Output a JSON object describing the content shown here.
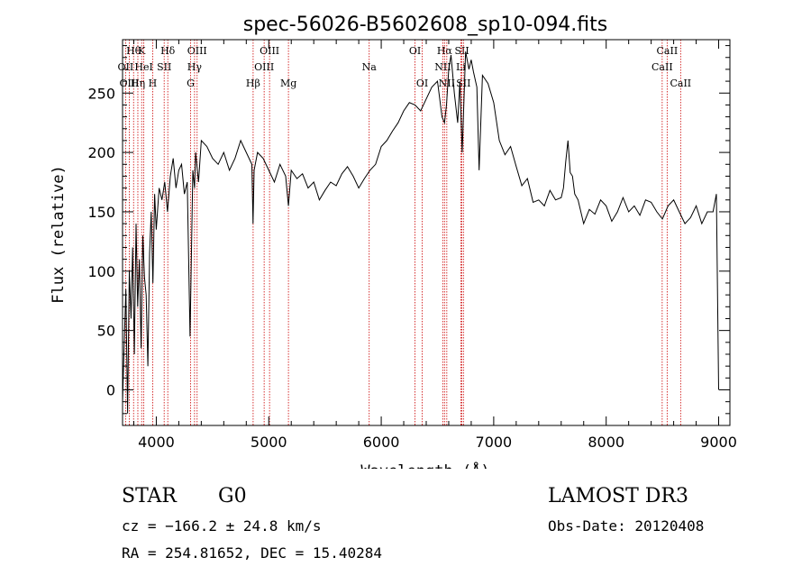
{
  "chart_data": {
    "type": "line",
    "title": "spec-56026-B5602608_sp10-094.fits",
    "xlabel": "Wavelength (Å)",
    "ylabel": "Flux (relative)",
    "xlim": [
      3700,
      9100
    ],
    "ylim": [
      -30,
      295
    ],
    "x_ticks": [
      4000,
      5000,
      6000,
      7000,
      8000,
      9000
    ],
    "y_ticks": [
      0,
      50,
      100,
      150,
      200,
      250
    ],
    "line_color": "#000000",
    "marker_color": "#cc0000",
    "series": [
      {
        "name": "flux",
        "x": [
          3700,
          3715,
          3730,
          3745,
          3760,
          3775,
          3790,
          3805,
          3820,
          3835,
          3850,
          3865,
          3880,
          3895,
          3910,
          3925,
          3940,
          3955,
          3970,
          3985,
          4000,
          4025,
          4050,
          4075,
          4100,
          4125,
          4150,
          4175,
          4200,
          4225,
          4250,
          4275,
          4300,
          4325,
          4340,
          4350,
          4375,
          4400,
          4450,
          4500,
          4550,
          4600,
          4650,
          4700,
          4750,
          4800,
          4850,
          4860,
          4870,
          4900,
          4950,
          5000,
          5050,
          5100,
          5150,
          5175,
          5200,
          5250,
          5300,
          5350,
          5400,
          5450,
          5500,
          5550,
          5600,
          5650,
          5700,
          5750,
          5800,
          5850,
          5900,
          5950,
          6000,
          6050,
          6100,
          6150,
          6200,
          6250,
          6300,
          6350,
          6400,
          6450,
          6500,
          6540,
          6563,
          6580,
          6600,
          6620,
          6650,
          6680,
          6700,
          6720,
          6750,
          6780,
          6800,
          6820,
          6850,
          6870,
          6900,
          6950,
          7000,
          7050,
          7100,
          7150,
          7200,
          7250,
          7300,
          7350,
          7400,
          7450,
          7500,
          7550,
          7600,
          7620,
          7640,
          7660,
          7680,
          7700,
          7720,
          7750,
          7800,
          7850,
          7900,
          7950,
          8000,
          8050,
          8100,
          8150,
          8200,
          8250,
          8300,
          8350,
          8400,
          8450,
          8500,
          8550,
          8600,
          8650,
          8700,
          8750,
          8800,
          8850,
          8900,
          8950,
          8980,
          9000
        ],
        "values": [
          -10,
          40,
          85,
          -20,
          100,
          60,
          120,
          30,
          140,
          70,
          110,
          35,
          130,
          95,
          80,
          20,
          115,
          150,
          90,
          165,
          135,
          170,
          160,
          175,
          150,
          180,
          195,
          170,
          185,
          190,
          165,
          175,
          45,
          185,
          170,
          200,
          175,
          210,
          205,
          195,
          190,
          200,
          185,
          195,
          210,
          200,
          190,
          140,
          185,
          200,
          195,
          185,
          175,
          190,
          180,
          155,
          185,
          178,
          182,
          170,
          175,
          160,
          168,
          175,
          172,
          182,
          188,
          180,
          170,
          178,
          185,
          190,
          205,
          210,
          218,
          225,
          235,
          242,
          240,
          235,
          245,
          255,
          260,
          230,
          225,
          240,
          270,
          282,
          250,
          225,
          260,
          200,
          285,
          270,
          278,
          268,
          255,
          185,
          265,
          258,
          242,
          210,
          198,
          205,
          188,
          172,
          178,
          158,
          160,
          155,
          168,
          160,
          162,
          170,
          192,
          210,
          183,
          180,
          165,
          160,
          140,
          152,
          148,
          160,
          155,
          142,
          150,
          162,
          150,
          155,
          147,
          160,
          158,
          150,
          144,
          155,
          160,
          150,
          140,
          145,
          155,
          140,
          150,
          150,
          165,
          0
        ]
      }
    ],
    "line_markers": [
      {
        "label": "Hθ",
        "x": 3798,
        "row": 1
      },
      {
        "label": "OII",
        "x": 3727,
        "row": 2
      },
      {
        "label": "OIII",
        "x": 3760,
        "row": 3
      },
      {
        "label": "K",
        "x": 3870,
        "row": 1
      },
      {
        "label": "HeI",
        "x": 3889,
        "row": 2
      },
      {
        "label": "Hη",
        "x": 3836,
        "row": 3
      },
      {
        "label": "H",
        "x": 3968,
        "row": 3
      },
      {
        "label": "Hδ",
        "x": 4102,
        "row": 1
      },
      {
        "label": "SII",
        "x": 4070,
        "row": 2
      },
      {
        "label": "OIII",
        "x": 4363,
        "row": 1
      },
      {
        "label": "Hγ",
        "x": 4340,
        "row": 2
      },
      {
        "label": "G",
        "x": 4305,
        "row": 3
      },
      {
        "label": "Hβ",
        "x": 4861,
        "row": 3
      },
      {
        "label": "OIII",
        "x": 5007,
        "row": 1
      },
      {
        "label": "OIII",
        "x": 4959,
        "row": 2
      },
      {
        "label": "Mg",
        "x": 5175,
        "row": 3
      },
      {
        "label": "Na",
        "x": 5893,
        "row": 2
      },
      {
        "label": "OI",
        "x": 6300,
        "row": 1
      },
      {
        "label": "OI",
        "x": 6364,
        "row": 3
      },
      {
        "label": "Hα",
        "x": 6563,
        "row": 1
      },
      {
        "label": "NII",
        "x": 6548,
        "row": 2
      },
      {
        "label": "NII",
        "x": 6583,
        "row": 3
      },
      {
        "label": "SII",
        "x": 6717,
        "row": 1
      },
      {
        "label": "SII",
        "x": 6731,
        "row": 3
      },
      {
        "label": "Li",
        "x": 6708,
        "row": 2
      },
      {
        "label": "CaII",
        "x": 8542,
        "row": 1
      },
      {
        "label": "CaII",
        "x": 8498,
        "row": 2
      },
      {
        "label": "CaII",
        "x": 8662,
        "row": 3
      }
    ]
  },
  "info": {
    "object_class": "STAR",
    "subclass": "G0",
    "survey": "LAMOST DR3",
    "redshift": "cz = −166.2 ± 24.8 km/s",
    "obs_date": "Obs-Date: 20120408",
    "coordinates": "RA = 254.81652, DEC =  15.40284"
  }
}
